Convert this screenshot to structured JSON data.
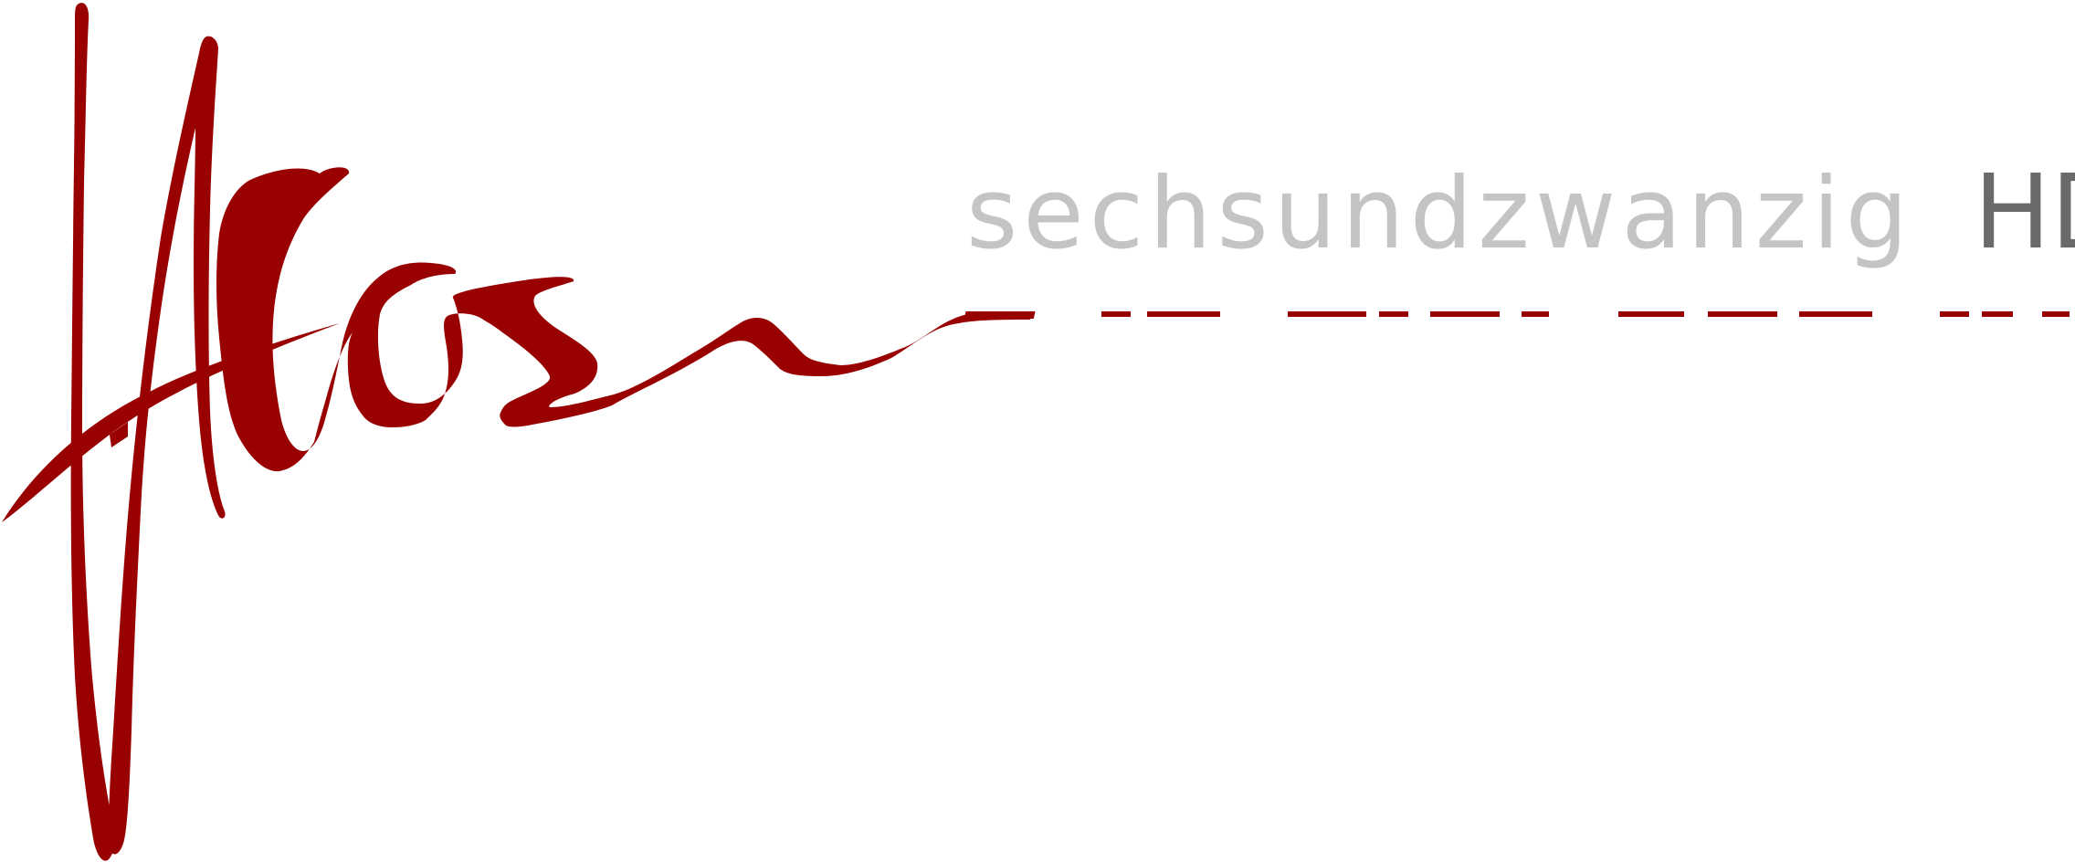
{
  "brand": {
    "signature_text": "Hafos",
    "tagline_word": "sechsundzwanzig",
    "tagline_suffix": "HD",
    "colors": {
      "signature": "#990000",
      "tagline_word": "#c4c4c4",
      "tagline_suffix": "#6a6a6a",
      "background": "#ffffff"
    }
  }
}
